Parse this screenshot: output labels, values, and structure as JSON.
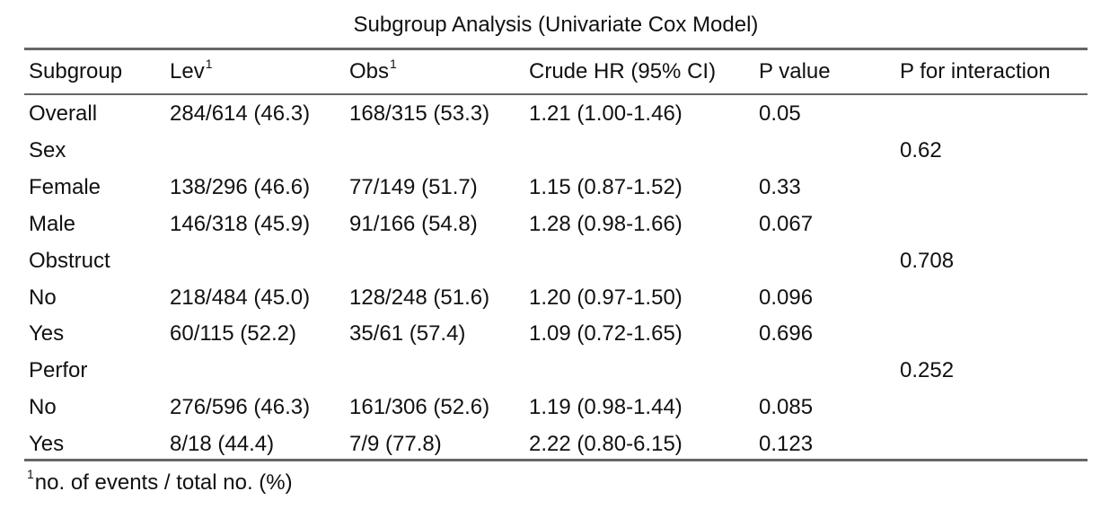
{
  "table": {
    "title": "Subgroup Analysis (Univariate Cox Model)",
    "headers": [
      {
        "label": "Subgroup",
        "sup": ""
      },
      {
        "label": "Lev",
        "sup": "1"
      },
      {
        "label": "Obs",
        "sup": "1"
      },
      {
        "label": "Crude HR (95% CI)",
        "sup": ""
      },
      {
        "label": "P value",
        "sup": ""
      },
      {
        "label": "P for interaction",
        "sup": ""
      }
    ],
    "rows": [
      [
        "Overall",
        "284/614 (46.3)",
        "168/315 (53.3)",
        "1.21 (1.00-1.46)",
        "0.05",
        ""
      ],
      [
        "Sex",
        "",
        "",
        "",
        "",
        "0.62"
      ],
      [
        "Female",
        "138/296 (46.6)",
        "77/149 (51.7)",
        "1.15 (0.87-1.52)",
        "0.33",
        ""
      ],
      [
        "Male",
        "146/318 (45.9)",
        "91/166 (54.8)",
        "1.28 (0.98-1.66)",
        "0.067",
        ""
      ],
      [
        "Obstruct",
        "",
        "",
        "",
        "",
        "0.708"
      ],
      [
        "No",
        "218/484 (45.0)",
        "128/248 (51.6)",
        "1.20 (0.97-1.50)",
        "0.096",
        ""
      ],
      [
        "Yes",
        "60/115 (52.2)",
        "35/61 (57.4)",
        "1.09 (0.72-1.65)",
        "0.696",
        ""
      ],
      [
        "Perfor",
        "",
        "",
        "",
        "",
        "0.252"
      ],
      [
        "No",
        "276/596 (46.3)",
        "161/306 (52.6)",
        "1.19 (0.98-1.44)",
        "0.085",
        ""
      ],
      [
        "Yes",
        "8/18 (44.4)",
        "7/9 (77.8)",
        "2.22 (0.80-6.15)",
        "0.123",
        ""
      ]
    ],
    "footnote": {
      "sup": "1",
      "text": "no. of events / total no. (%)"
    }
  }
}
